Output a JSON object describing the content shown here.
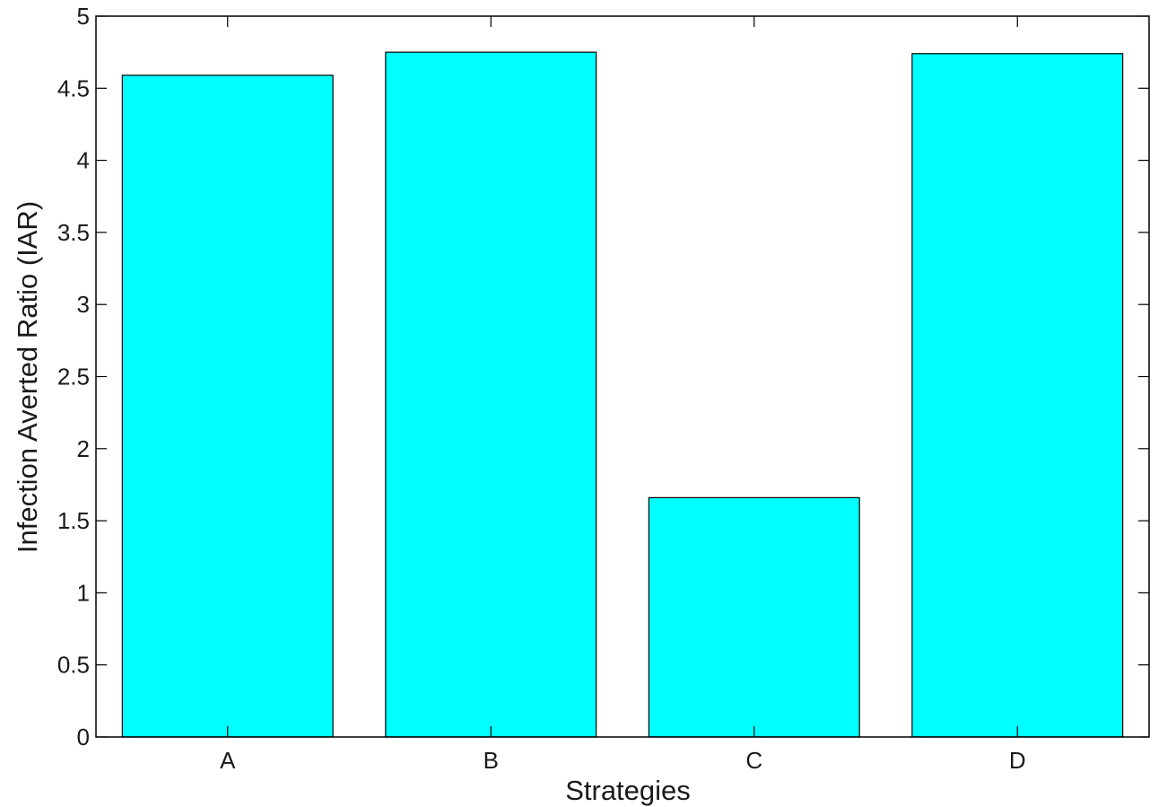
{
  "chart_data": {
    "type": "bar",
    "categories": [
      "A",
      "B",
      "C",
      "D"
    ],
    "values": [
      4.59,
      4.75,
      1.66,
      4.74
    ],
    "xlabel": "Strategies",
    "ylabel": "Infection Averted Ratio (IAR)",
    "ylim": [
      0,
      5
    ],
    "yticks": [
      "0",
      "0.5",
      "1",
      "1.5",
      "2",
      "2.5",
      "3",
      "3.5",
      "4",
      "4.5",
      "5"
    ],
    "bar_color": "#00ffff",
    "grid": false,
    "legend": "none"
  }
}
